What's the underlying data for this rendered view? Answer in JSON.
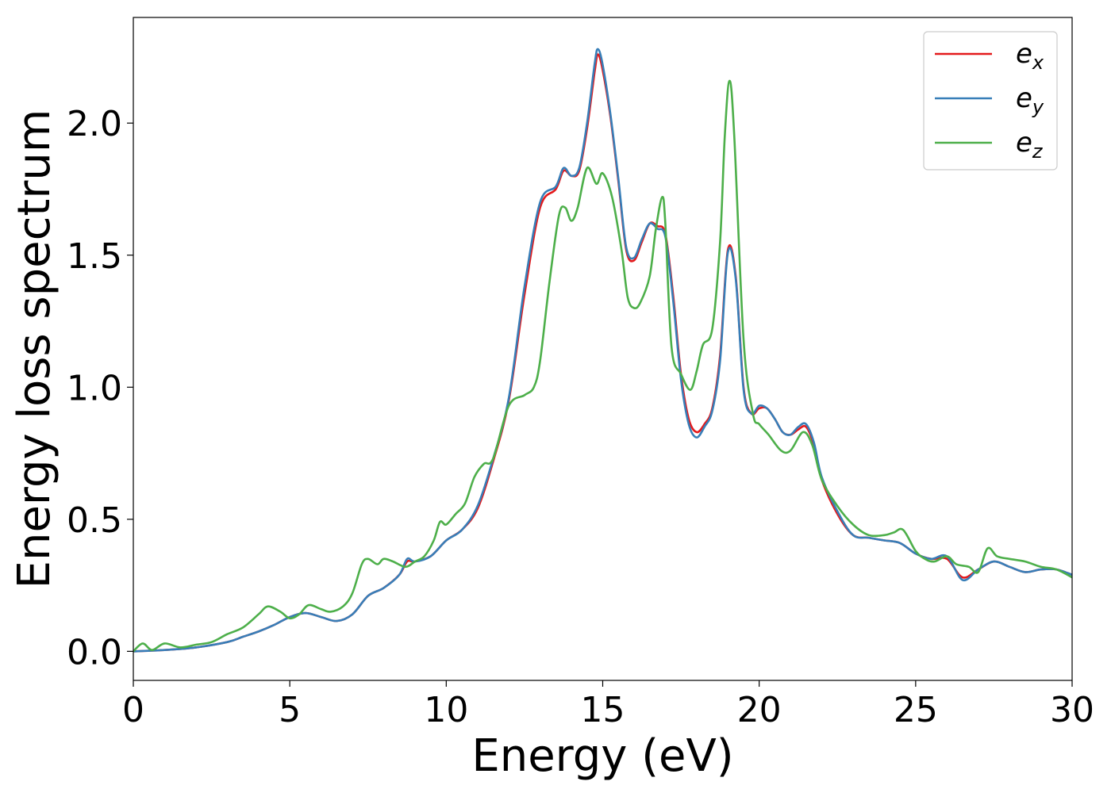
{
  "chart_data": {
    "type": "line",
    "title": "",
    "xlabel": "Energy (eV)",
    "ylabel": "Energy loss spectrum",
    "xlim": [
      0,
      30
    ],
    "ylim": [
      -0.11,
      2.4
    ],
    "xticks": [
      0,
      5,
      10,
      15,
      20,
      25,
      30
    ],
    "xtick_labels": [
      "0",
      "5",
      "10",
      "15",
      "20",
      "25",
      "30"
    ],
    "yticks": [
      0.0,
      0.5,
      1.0,
      1.5,
      2.0
    ],
    "ytick_labels": [
      "0.0",
      "0.5",
      "1.0",
      "1.5",
      "2.0"
    ],
    "grid": false,
    "legend_position": "top-right",
    "series": [
      {
        "name": "e_x",
        "legend_base": "e",
        "legend_sub": "x",
        "color": "#e41a1c",
        "x": [
          0,
          1,
          2,
          3,
          3.5,
          4,
          4.5,
          5,
          5.5,
          6,
          6.5,
          7,
          7.5,
          8,
          8.5,
          8.75,
          9,
          9.5,
          10,
          10.5,
          11,
          11.5,
          12,
          12.5,
          13,
          13.5,
          13.75,
          14,
          14.25,
          14.5,
          14.75,
          14.85,
          15,
          15.25,
          15.5,
          15.75,
          16,
          16.25,
          16.5,
          16.75,
          17,
          17.25,
          17.5,
          17.75,
          18,
          18.25,
          18.5,
          18.75,
          19,
          19.25,
          19.5,
          19.75,
          20,
          20.25,
          20.5,
          20.75,
          21,
          21.25,
          21.5,
          21.75,
          22,
          22.5,
          23,
          23.5,
          24,
          24.5,
          25,
          25.5,
          26,
          26.5,
          27,
          27.5,
          28,
          28.5,
          29,
          29.5,
          30
        ],
        "values": [
          0,
          0.005,
          0.015,
          0.035,
          0.055,
          0.075,
          0.1,
          0.13,
          0.145,
          0.13,
          0.115,
          0.14,
          0.21,
          0.24,
          0.29,
          0.34,
          0.34,
          0.36,
          0.42,
          0.46,
          0.54,
          0.72,
          0.95,
          1.35,
          1.68,
          1.75,
          1.82,
          1.8,
          1.82,
          1.98,
          2.2,
          2.26,
          2.2,
          2.02,
          1.78,
          1.52,
          1.48,
          1.55,
          1.62,
          1.61,
          1.58,
          1.35,
          1.05,
          0.88,
          0.83,
          0.86,
          0.92,
          1.12,
          1.52,
          1.42,
          1.0,
          0.9,
          0.92,
          0.92,
          0.88,
          0.83,
          0.82,
          0.84,
          0.85,
          0.78,
          0.65,
          0.52,
          0.44,
          0.43,
          0.42,
          0.41,
          0.37,
          0.35,
          0.35,
          0.28,
          0.31,
          0.34,
          0.32,
          0.3,
          0.31,
          0.31,
          0.29
        ]
      },
      {
        "name": "e_y",
        "legend_base": "e",
        "legend_sub": "y",
        "color": "#377eb8",
        "x": [
          0,
          1,
          2,
          3,
          3.5,
          4,
          4.5,
          5,
          5.5,
          6,
          6.5,
          7,
          7.5,
          8,
          8.5,
          8.75,
          9,
          9.5,
          10,
          10.5,
          11,
          11.5,
          12,
          12.5,
          13,
          13.5,
          13.75,
          14,
          14.25,
          14.5,
          14.75,
          14.85,
          15,
          15.25,
          15.5,
          15.75,
          16,
          16.25,
          16.5,
          16.75,
          17,
          17.25,
          17.5,
          17.75,
          18,
          18.25,
          18.5,
          18.75,
          19,
          19.25,
          19.5,
          19.75,
          20,
          20.25,
          20.5,
          20.75,
          21,
          21.25,
          21.5,
          21.75,
          22,
          22.5,
          23,
          23.5,
          24,
          24.5,
          25,
          25.5,
          26,
          26.5,
          27,
          27.5,
          28,
          28.5,
          29,
          29.5,
          30
        ],
        "values": [
          0,
          0.005,
          0.015,
          0.035,
          0.055,
          0.075,
          0.1,
          0.13,
          0.145,
          0.13,
          0.115,
          0.14,
          0.21,
          0.24,
          0.29,
          0.35,
          0.34,
          0.36,
          0.42,
          0.46,
          0.55,
          0.73,
          0.96,
          1.38,
          1.7,
          1.76,
          1.83,
          1.8,
          1.83,
          2.0,
          2.23,
          2.28,
          2.22,
          2.03,
          1.79,
          1.53,
          1.49,
          1.56,
          1.62,
          1.6,
          1.57,
          1.33,
          1.03,
          0.86,
          0.81,
          0.85,
          0.91,
          1.1,
          1.51,
          1.41,
          0.99,
          0.9,
          0.93,
          0.92,
          0.88,
          0.83,
          0.82,
          0.85,
          0.86,
          0.79,
          0.66,
          0.53,
          0.44,
          0.43,
          0.42,
          0.41,
          0.37,
          0.35,
          0.36,
          0.27,
          0.31,
          0.34,
          0.32,
          0.3,
          0.31,
          0.31,
          0.29
        ]
      },
      {
        "name": "e_z",
        "legend_base": "e",
        "legend_sub": "z",
        "color": "#4daf4a",
        "x": [
          0,
          0.3,
          0.6,
          1,
          1.5,
          2,
          2.5,
          3,
          3.5,
          4,
          4.3,
          4.7,
          5,
          5.3,
          5.6,
          6,
          6.3,
          6.7,
          7,
          7.3,
          7.5,
          7.8,
          8,
          8.3,
          8.7,
          9,
          9.3,
          9.6,
          9.8,
          10,
          10.3,
          10.6,
          10.9,
          11.2,
          11.5,
          12,
          12.5,
          12.8,
          13,
          13.3,
          13.6,
          13.8,
          14,
          14.2,
          14.5,
          14.8,
          15,
          15.3,
          15.6,
          15.8,
          16,
          16.2,
          16.5,
          16.7,
          16.9,
          17,
          17.2,
          17.5,
          17.8,
          18,
          18.2,
          18.5,
          18.75,
          18.9,
          19.05,
          19.2,
          19.5,
          19.8,
          20,
          20.3,
          20.7,
          21,
          21.4,
          21.7,
          22,
          22.5,
          23,
          23.5,
          24,
          24.3,
          24.6,
          25,
          25.3,
          25.6,
          26,
          26.3,
          26.7,
          27,
          27.3,
          27.6,
          28,
          28.5,
          29,
          29.5,
          30
        ],
        "values": [
          0,
          0.03,
          0.005,
          0.03,
          0.015,
          0.025,
          0.035,
          0.065,
          0.09,
          0.14,
          0.17,
          0.15,
          0.125,
          0.14,
          0.175,
          0.16,
          0.15,
          0.17,
          0.22,
          0.33,
          0.35,
          0.33,
          0.35,
          0.34,
          0.32,
          0.34,
          0.36,
          0.42,
          0.49,
          0.48,
          0.52,
          0.56,
          0.66,
          0.71,
          0.73,
          0.93,
          0.97,
          1.0,
          1.1,
          1.4,
          1.65,
          1.68,
          1.63,
          1.68,
          1.83,
          1.77,
          1.81,
          1.72,
          1.52,
          1.34,
          1.3,
          1.32,
          1.42,
          1.6,
          1.72,
          1.62,
          1.15,
          1.05,
          0.99,
          1.06,
          1.16,
          1.22,
          1.55,
          1.95,
          2.16,
          1.96,
          1.18,
          0.9,
          0.86,
          0.82,
          0.76,
          0.76,
          0.83,
          0.78,
          0.65,
          0.55,
          0.48,
          0.44,
          0.44,
          0.45,
          0.46,
          0.38,
          0.35,
          0.34,
          0.36,
          0.33,
          0.32,
          0.3,
          0.39,
          0.36,
          0.35,
          0.34,
          0.32,
          0.31,
          0.28
        ]
      }
    ]
  }
}
